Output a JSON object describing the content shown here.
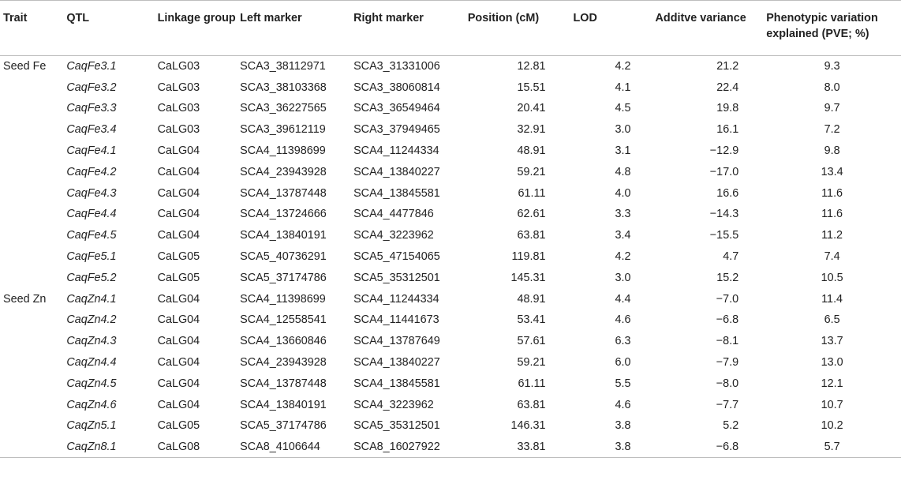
{
  "headers": {
    "trait": "Trait",
    "qtl": "QTL",
    "linkage_group": "Linkage group",
    "left_marker": "Left marker",
    "right_marker": "Right marker",
    "position": "Position (cM)",
    "lod": "LOD",
    "additive_variance": "Additve variance",
    "pve": "Phenotypic variation explained (PVE; %)"
  },
  "rows": [
    {
      "trait": "Seed Fe",
      "qtl": "CaqFe3.1",
      "lg": "CaLG03",
      "left": "SCA3_38112971",
      "right": "SCA3_31331006",
      "pos": "12.81",
      "lod": "4.2",
      "add": "21.2",
      "pve": "9.3"
    },
    {
      "trait": "",
      "qtl": "CaqFe3.2",
      "lg": "CaLG03",
      "left": "SCA3_38103368",
      "right": "SCA3_38060814",
      "pos": "15.51",
      "lod": "4.1",
      "add": "22.4",
      "pve": "8.0"
    },
    {
      "trait": "",
      "qtl": "CaqFe3.3",
      "lg": "CaLG03",
      "left": "SCA3_36227565",
      "right": "SCA3_36549464",
      "pos": "20.41",
      "lod": "4.5",
      "add": "19.8",
      "pve": "9.7"
    },
    {
      "trait": "",
      "qtl": "CaqFe3.4",
      "lg": "CaLG03",
      "left": "SCA3_39612119",
      "right": "SCA3_37949465",
      "pos": "32.91",
      "lod": "3.0",
      "add": "16.1",
      "pve": "7.2"
    },
    {
      "trait": "",
      "qtl": "CaqFe4.1",
      "lg": "CaLG04",
      "left": "SCA4_11398699",
      "right": "SCA4_11244334",
      "pos": "48.91",
      "lod": "3.1",
      "add": "−12.9",
      "pve": "9.8"
    },
    {
      "trait": "",
      "qtl": "CaqFe4.2",
      "lg": "CaLG04",
      "left": "SCA4_23943928",
      "right": "SCA4_13840227",
      "pos": "59.21",
      "lod": "4.8",
      "add": "−17.0",
      "pve": "13.4"
    },
    {
      "trait": "",
      "qtl": "CaqFe4.3",
      "lg": "CaLG04",
      "left": "SCA4_13787448",
      "right": "SCA4_13845581",
      "pos": "61.11",
      "lod": "4.0",
      "add": "16.6",
      "pve": "11.6"
    },
    {
      "trait": "",
      "qtl": "CaqFe4.4",
      "lg": "CaLG04",
      "left": "SCA4_13724666",
      "right": "SCA4_4477846",
      "pos": "62.61",
      "lod": "3.3",
      "add": "−14.3",
      "pve": "11.6"
    },
    {
      "trait": "",
      "qtl": "CaqFe4.5",
      "lg": "CaLG04",
      "left": "SCA4_13840191",
      "right": "SCA4_3223962",
      "pos": "63.81",
      "lod": "3.4",
      "add": "−15.5",
      "pve": "11.2"
    },
    {
      "trait": "",
      "qtl": "CaqFe5.1",
      "lg": "CaLG05",
      "left": "SCA5_40736291",
      "right": "SCA5_47154065",
      "pos": "119.81",
      "lod": "4.2",
      "add": "4.7",
      "pve": "7.4"
    },
    {
      "trait": "",
      "qtl": "CaqFe5.2",
      "lg": "CaLG05",
      "left": "SCA5_37174786",
      "right": "SCA5_35312501",
      "pos": "145.31",
      "lod": "3.0",
      "add": "15.2",
      "pve": "10.5"
    },
    {
      "trait": "Seed Zn",
      "qtl": "CaqZn4.1",
      "lg": "CaLG04",
      "left": "SCA4_11398699",
      "right": "SCA4_11244334",
      "pos": "48.91",
      "lod": "4.4",
      "add": "−7.0",
      "pve": "11.4"
    },
    {
      "trait": "",
      "qtl": "CaqZn4.2",
      "lg": "CaLG04",
      "left": "SCA4_12558541",
      "right": "SCA4_11441673",
      "pos": "53.41",
      "lod": "4.6",
      "add": "−6.8",
      "pve": "6.5"
    },
    {
      "trait": "",
      "qtl": "CaqZn4.3",
      "lg": "CaLG04",
      "left": "SCA4_13660846",
      "right": "SCA4_13787649",
      "pos": "57.61",
      "lod": "6.3",
      "add": "−8.1",
      "pve": "13.7"
    },
    {
      "trait": "",
      "qtl": "CaqZn4.4",
      "lg": "CaLG04",
      "left": "SCA4_23943928",
      "right": "SCA4_13840227",
      "pos": "59.21",
      "lod": "6.0",
      "add": "−7.9",
      "pve": "13.0"
    },
    {
      "trait": "",
      "qtl": "CaqZn4.5",
      "lg": "CaLG04",
      "left": "SCA4_13787448",
      "right": "SCA4_13845581",
      "pos": "61.11",
      "lod": "5.5",
      "add": "−8.0",
      "pve": "12.1"
    },
    {
      "trait": "",
      "qtl": "CaqZn4.6",
      "lg": "CaLG04",
      "left": "SCA4_13840191",
      "right": "SCA4_3223962",
      "pos": "63.81",
      "lod": "4.6",
      "add": "−7.7",
      "pve": "10.7"
    },
    {
      "trait": "",
      "qtl": "CaqZn5.1",
      "lg": "CaLG05",
      "left": "SCA5_37174786",
      "right": "SCA5_35312501",
      "pos": "146.31",
      "lod": "3.8",
      "add": "5.2",
      "pve": "10.2"
    },
    {
      "trait": "",
      "qtl": "CaqZn8.1",
      "lg": "CaLG08",
      "left": "SCA8_4106644",
      "right": "SCA8_16027922",
      "pos": "33.81",
      "lod": "3.8",
      "add": "−6.8",
      "pve": "5.7"
    }
  ]
}
